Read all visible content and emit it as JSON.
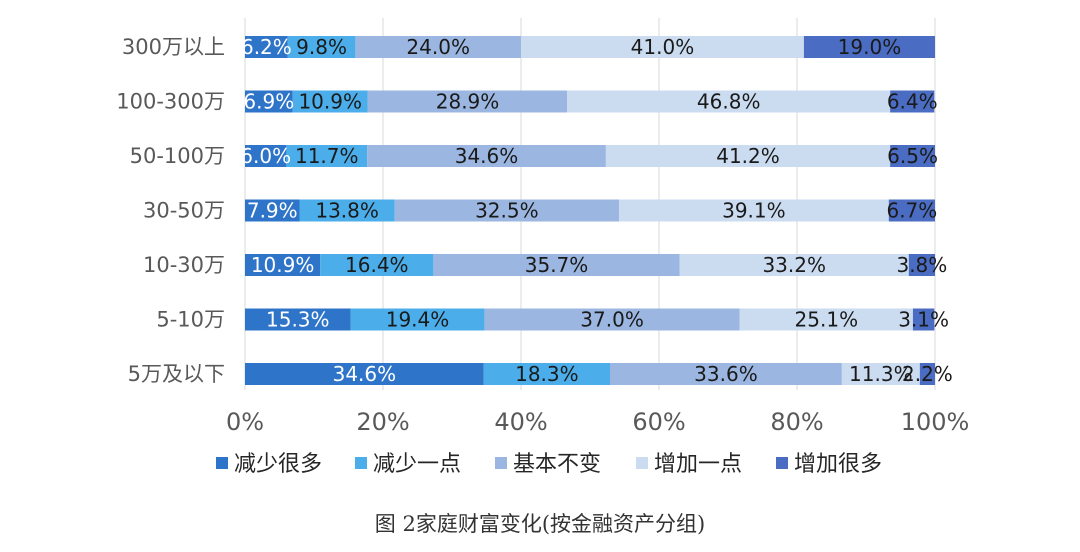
{
  "caption": "图 2家庭财富变化(按金融资产分组)",
  "chart_data": {
    "type": "bar",
    "orientation": "horizontal",
    "stacked": "percent",
    "categories": [
      "300万以上",
      "100-300万",
      "50-100万",
      "30-50万",
      "10-30万",
      "5-10万",
      "5万及以下"
    ],
    "series": [
      {
        "name": "减少很多",
        "color": "#2E74C8",
        "values": [
          6.2,
          6.9,
          6.0,
          7.9,
          10.9,
          15.3,
          34.6
        ],
        "labels": [
          "6.2%",
          "6.9%",
          "6.0%",
          "7.9%",
          "10.9%",
          "15.3%",
          "34.6%"
        ]
      },
      {
        "name": "减少一点",
        "color": "#4BAEEA",
        "values": [
          9.8,
          10.9,
          11.7,
          13.8,
          16.4,
          19.4,
          18.3
        ],
        "labels": [
          "9.8%",
          "10.9%",
          "11.7%",
          "13.8%",
          "16.4%",
          "19.4%",
          "18.3%"
        ]
      },
      {
        "name": "基本不变",
        "color": "#9BB6E0",
        "values": [
          24.0,
          28.9,
          34.6,
          32.5,
          35.7,
          37.0,
          33.6
        ],
        "labels": [
          "24.0%",
          "28.9%",
          "34.6%",
          "32.5%",
          "35.7%",
          "37.0%",
          "33.6%"
        ]
      },
      {
        "name": "增加一点",
        "color": "#CBDCF0",
        "values": [
          41.0,
          46.8,
          41.2,
          39.1,
          33.2,
          25.1,
          11.3
        ],
        "labels": [
          "41.0%",
          "46.8%",
          "41.2%",
          "39.1%",
          "33.2%",
          "25.1%",
          "11.3%"
        ]
      },
      {
        "name": "增加很多",
        "color": "#4A6CC2",
        "values": [
          19.0,
          6.4,
          6.5,
          6.7,
          3.8,
          3.1,
          2.2
        ],
        "labels": [
          "19.0%",
          "6.4%",
          "6.5%",
          "6.7%",
          "3.8%",
          "3.1%",
          "2.2%"
        ]
      }
    ],
    "xlim": [
      0,
      100
    ],
    "xticks": [
      0,
      20,
      40,
      60,
      80,
      100
    ],
    "xtick_labels": [
      "0%",
      "20%",
      "40%",
      "60%",
      "80%",
      "100%"
    ],
    "grid": "vertical",
    "legend": "bottom"
  }
}
